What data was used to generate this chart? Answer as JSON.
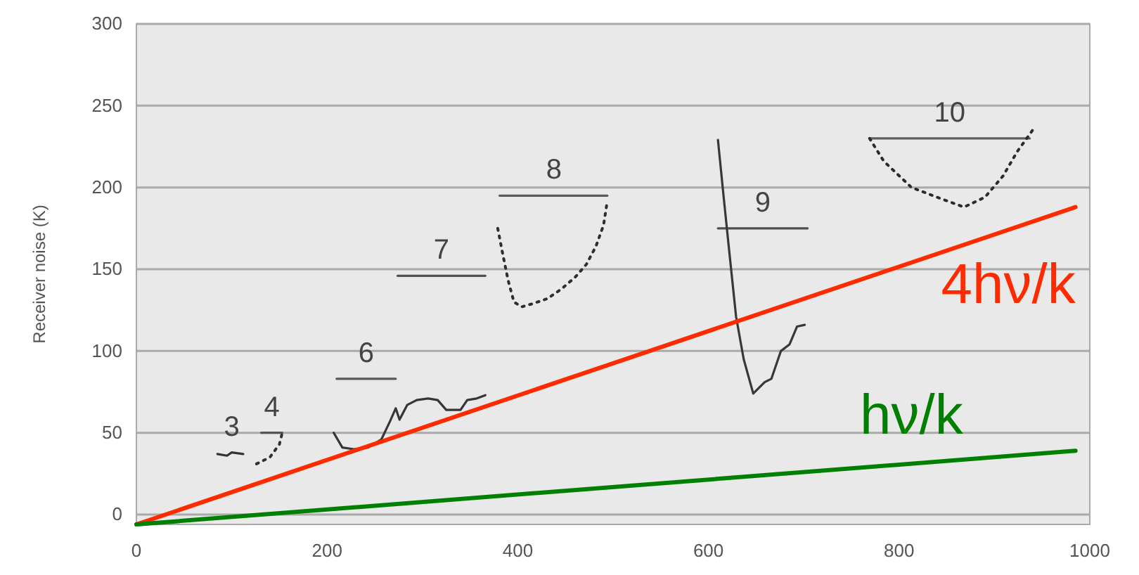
{
  "chart_data": {
    "type": "line",
    "ylabel": "Receiver noise (K)",
    "xlim": [
      0,
      1000
    ],
    "xticks": [
      0,
      200,
      400,
      600,
      800,
      1000
    ],
    "ylim": [
      -6,
      300
    ],
    "yticks": [
      0,
      50,
      100,
      150,
      200,
      250,
      300
    ],
    "grid": "y",
    "marker": "none",
    "series": [
      {
        "type": "line",
        "color": "#333333",
        "line_style": "solid",
        "x": [
          85,
          95,
          100,
          112
        ],
        "values": [
          37,
          36,
          38,
          37
        ]
      },
      {
        "type": "line",
        "color": "#555555",
        "line_style": "solid",
        "x": [
          131,
          153
        ],
        "values": [
          50,
          50
        ]
      },
      {
        "type": "line",
        "color": "#303030",
        "line_style": "dotted",
        "x": [
          126,
          140,
          150,
          153
        ],
        "values": [
          31,
          35,
          43,
          50
        ]
      },
      {
        "type": "line",
        "color": "#585858",
        "line_style": "solid",
        "x": [
          210,
          272
        ],
        "values": [
          83,
          83
        ]
      },
      {
        "type": "line",
        "color": "#363636",
        "line_style": "solid",
        "x": [
          207,
          216,
          228,
          243,
          257,
          266,
          272,
          276,
          284,
          294,
          306,
          316,
          325,
          340,
          347,
          357,
          366
        ],
        "values": [
          50,
          41,
          40,
          41,
          46,
          57,
          65,
          58,
          67,
          70,
          71,
          70,
          64,
          64,
          70,
          71,
          73
        ]
      },
      {
        "type": "line",
        "color": "#525252",
        "line_style": "solid",
        "x": [
          274,
          366
        ],
        "values": [
          146,
          146
        ]
      },
      {
        "type": "line",
        "color": "#5b5b5b",
        "line_style": "solid",
        "x": [
          381,
          494
        ],
        "values": [
          195,
          195
        ]
      },
      {
        "type": "line",
        "color": "#2e2e2e",
        "line_style": "dotted",
        "x": [
          379,
          384,
          390,
          396,
          404,
          416,
          431,
          446,
          460,
          472,
          482,
          490,
          494
        ],
        "values": [
          175,
          160,
          143,
          130,
          127,
          129,
          132,
          138,
          145,
          153,
          164,
          177,
          192
        ]
      },
      {
        "type": "line",
        "color": "#4f4f4f",
        "line_style": "solid",
        "x": [
          610,
          704
        ],
        "values": [
          175,
          175
        ]
      },
      {
        "type": "line",
        "color": "#383838",
        "line_style": "solid",
        "x": [
          610,
          616,
          622,
          629,
          637,
          647,
          659,
          666,
          676,
          685,
          693,
          701
        ],
        "values": [
          229,
          194,
          160,
          121,
          95,
          74,
          81,
          83,
          100,
          104,
          115,
          116
        ]
      },
      {
        "type": "line",
        "color": "#5e5e5e",
        "line_style": "solid",
        "x": [
          769,
          937
        ],
        "values": [
          230,
          230
        ]
      },
      {
        "type": "line",
        "color": "#2b2b2b",
        "line_style": "dotted",
        "x": [
          769,
          784,
          813,
          840,
          868,
          890,
          909,
          924,
          940
        ],
        "values": [
          230,
          216,
          200,
          194,
          188,
          194,
          207,
          222,
          235
        ]
      },
      {
        "type": "line",
        "name": "4hν/k",
        "color": "#ff2a00",
        "line_style": "solid",
        "x": [
          0,
          985
        ],
        "values": [
          -6,
          188
        ]
      },
      {
        "type": "line",
        "name": "hν/k",
        "color": "#008000",
        "line_style": "solid",
        "x": [
          0,
          985
        ],
        "values": [
          -6,
          39
        ]
      }
    ],
    "annotations": [
      {
        "text": "3",
        "x": 100,
        "y": 38
      },
      {
        "text": "4",
        "x": 142,
        "y": 50
      },
      {
        "text": "6",
        "x": 241,
        "y": 83
      },
      {
        "text": "7",
        "x": 320,
        "y": 146
      },
      {
        "text": "8",
        "x": 438,
        "y": 195
      },
      {
        "text": "9",
        "x": 657,
        "y": 175
      },
      {
        "text": "10",
        "x": 853,
        "y": 230
      }
    ]
  }
}
